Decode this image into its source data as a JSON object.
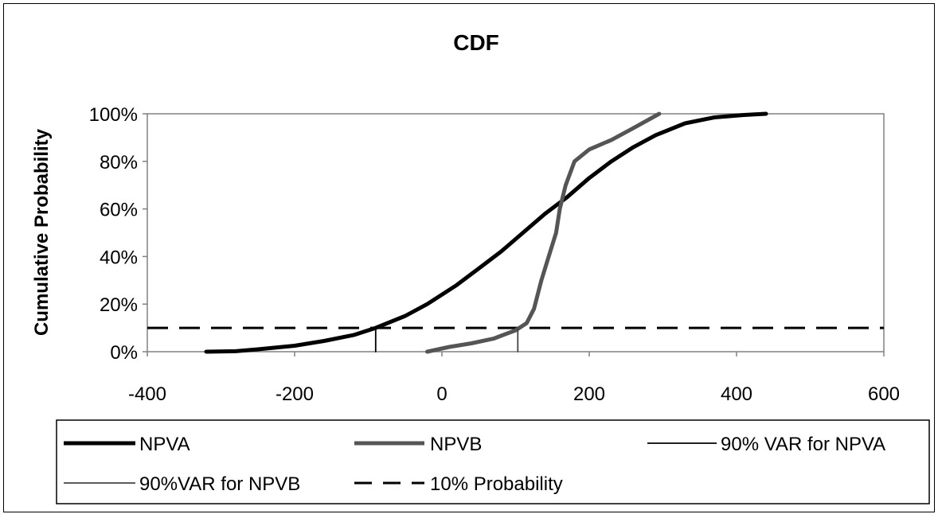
{
  "chart_data": {
    "type": "line",
    "title": "CDF",
    "xlabel": "",
    "ylabel": "Cumulative Probability",
    "xlim": [
      -400,
      600
    ],
    "ylim": [
      0,
      1
    ],
    "x_ticks": [
      -400,
      -200,
      0,
      200,
      400,
      600
    ],
    "y_ticks": [
      0,
      0.2,
      0.4,
      0.6,
      0.8,
      1.0
    ],
    "x_tick_labels": [
      "-400",
      "-200",
      "0",
      "200",
      "400",
      "600"
    ],
    "y_tick_labels": [
      "0%",
      "20%",
      "40%",
      "60%",
      "80%",
      "100%"
    ],
    "grid": false,
    "legend_position": "bottom",
    "series": [
      {
        "name": "NPVA",
        "color": "#000000",
        "style": "thick-solid",
        "points": [
          [
            -320,
            0
          ],
          [
            -280,
            0.002
          ],
          [
            -250,
            0.01
          ],
          [
            -200,
            0.025
          ],
          [
            -160,
            0.045
          ],
          [
            -120,
            0.07
          ],
          [
            -90,
            0.1
          ],
          [
            -50,
            0.15
          ],
          [
            -20,
            0.2
          ],
          [
            20,
            0.28
          ],
          [
            50,
            0.35
          ],
          [
            80,
            0.42
          ],
          [
            110,
            0.5
          ],
          [
            140,
            0.58
          ],
          [
            170,
            0.65
          ],
          [
            200,
            0.73
          ],
          [
            230,
            0.8
          ],
          [
            260,
            0.86
          ],
          [
            290,
            0.91
          ],
          [
            330,
            0.96
          ],
          [
            370,
            0.985
          ],
          [
            410,
            0.995
          ],
          [
            440,
            1.0
          ]
        ]
      },
      {
        "name": "NPVB",
        "color": "#555555",
        "style": "thick-solid",
        "points": [
          [
            -20,
            0
          ],
          [
            10,
            0.02
          ],
          [
            40,
            0.035
          ],
          [
            70,
            0.055
          ],
          [
            100,
            0.09
          ],
          [
            115,
            0.12
          ],
          [
            125,
            0.18
          ],
          [
            135,
            0.3
          ],
          [
            145,
            0.4
          ],
          [
            155,
            0.5
          ],
          [
            160,
            0.6
          ],
          [
            168,
            0.7
          ],
          [
            180,
            0.8
          ],
          [
            200,
            0.85
          ],
          [
            230,
            0.89
          ],
          [
            260,
            0.94
          ],
          [
            295,
            1.0
          ]
        ]
      },
      {
        "name": "90% VAR for NPVA",
        "color": "#000000",
        "style": "thin-solid",
        "points": [
          [
            -90,
            0
          ],
          [
            -90,
            0.1
          ]
        ]
      },
      {
        "name": "90%VAR for NPVB",
        "color": "#444444",
        "style": "thin-solid",
        "points": [
          [
            103,
            0
          ],
          [
            103,
            0.1
          ]
        ]
      },
      {
        "name": "10% Probability",
        "color": "#000000",
        "style": "dashed",
        "points": [
          [
            -400,
            0.1
          ],
          [
            600,
            0.1
          ]
        ]
      }
    ]
  }
}
